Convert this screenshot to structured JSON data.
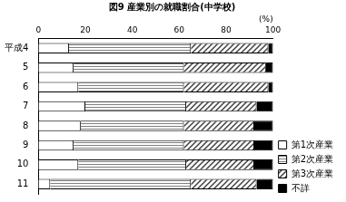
{
  "chart_data": {
    "type": "bar",
    "title": "図9 産業別の就職割合(中学校)",
    "orientation": "horizontal",
    "stacked": true,
    "grid": false,
    "legend": "right",
    "xlabel": "(%)",
    "categories": [
      "平成4",
      "5",
      "6",
      "7",
      "8",
      "9",
      "10",
      "11"
    ],
    "series": [
      {
        "name": "第1次産業",
        "color": "#ffffff",
        "values": [
          13,
          15,
          17,
          20,
          18,
          15,
          17,
          5
        ]
      },
      {
        "name": "第2次産業",
        "color": "#808080",
        "values": [
          52,
          47,
          45,
          43,
          44,
          47,
          46,
          60
        ]
      },
      {
        "name": "第3次産業",
        "color": "#404040",
        "values": [
          33,
          35,
          36,
          30,
          30,
          30,
          29,
          28
        ]
      },
      {
        "name": "不詳",
        "color": "#000000",
        "values": [
          2,
          3,
          2,
          7,
          8,
          8,
          8,
          7
        ]
      }
    ],
    "xlim": [
      0,
      100
    ],
    "xticks": [
      0,
      20,
      40,
      60,
      80,
      100
    ]
  }
}
